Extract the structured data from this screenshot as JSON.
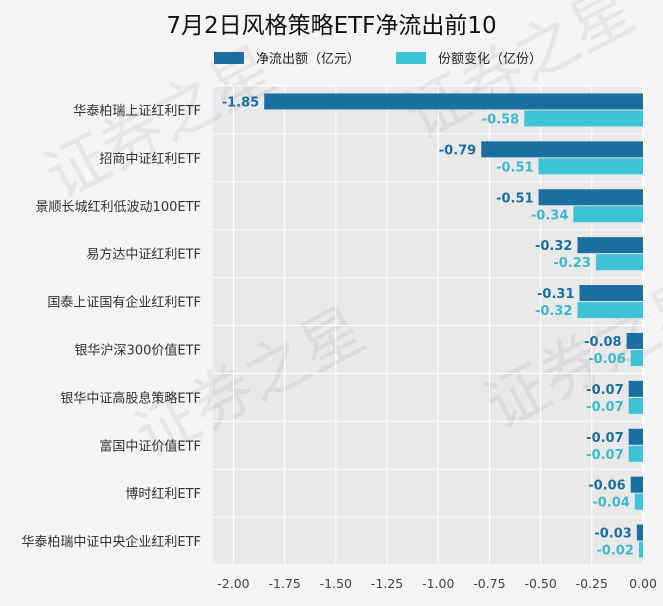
{
  "chart_data": {
    "type": "bar",
    "orientation": "horizontal",
    "title": "7月2日风格策略ETF净流出前10",
    "categories": [
      "华泰柏瑞上证红利ETF",
      "招商中证红利ETF",
      "景顺长城红利低波动100ETF",
      "易方达中证红利ETF",
      "国泰上证国有企业红利ETF",
      "银华沪深300价值ETF",
      "银华中证高股息策略ETF",
      "富国中证价值ETF",
      "博时红利ETF",
      "华泰柏瑞中证中央企业红利ETF"
    ],
    "series": [
      {
        "name": "净流出额（亿元）",
        "color": "#1b6fa0",
        "label_color": "#1b6fa0",
        "values": [
          -1.85,
          -0.79,
          -0.51,
          -0.32,
          -0.31,
          -0.08,
          -0.07,
          -0.07,
          -0.06,
          -0.03
        ],
        "labels": [
          "-1.85",
          "-0.79",
          "-0.51",
          "-0.32",
          "-0.31",
          "-0.08",
          "-0.07",
          "-0.07",
          "-0.06",
          "-0.03"
        ]
      },
      {
        "name": "份额变化（亿份）",
        "color": "#3dc3d6",
        "label_color": "#3db8cc",
        "values": [
          -0.58,
          -0.51,
          -0.34,
          -0.23,
          -0.32,
          -0.06,
          -0.07,
          -0.07,
          -0.04,
          -0.02
        ],
        "labels": [
          "-0.58",
          "-0.51",
          "-0.34",
          "-0.23",
          "-0.32",
          "-0.06",
          "-0.07",
          "-0.07",
          "-0.04",
          "-0.02"
        ]
      }
    ],
    "xlim": [
      -2.1,
      0.0
    ],
    "xticks": [
      -2.0,
      -1.75,
      -1.5,
      -1.25,
      -1.0,
      -0.75,
      -0.5,
      -0.25,
      0.0
    ],
    "xtick_labels": [
      "-2.00",
      "-1.75",
      "-1.50",
      "-1.25",
      "-1.00",
      "-0.75",
      "-0.50",
      "-0.25",
      "0.00"
    ],
    "grid": true,
    "legend_position": "top",
    "plot_background": "#e9e9e9"
  },
  "watermark": "证券之星"
}
